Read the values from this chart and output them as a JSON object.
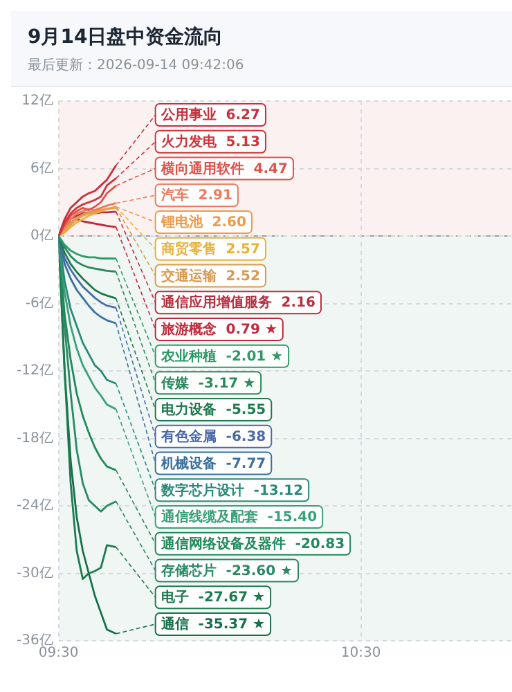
{
  "chart_data": {
    "type": "line",
    "title": "9月14日盘中资金流向",
    "subtitle": "最后更新：2026-09-14 09:42:06",
    "x": [
      9.5,
      9.52,
      9.54,
      9.56,
      9.58,
      9.6,
      9.62,
      9.64,
      9.66,
      9.69
    ],
    "xlim": [
      9.5,
      11
    ],
    "xticks": [
      {
        "value": 9.5,
        "label": "09:30"
      },
      {
        "value": 10.5,
        "label": "10:30"
      }
    ],
    "ylim": [
      -36,
      12
    ],
    "yticks": [
      {
        "value": 12,
        "label": "12亿"
      },
      {
        "value": 6,
        "label": "6亿"
      },
      {
        "value": 0,
        "label": "0亿"
      },
      {
        "value": -6,
        "label": "-6亿"
      },
      {
        "value": -12,
        "label": "-12亿"
      },
      {
        "value": -18,
        "label": "-18亿"
      },
      {
        "value": -24,
        "label": "-24亿"
      },
      {
        "value": -30,
        "label": "-30亿"
      },
      {
        "value": -36,
        "label": "-36亿"
      }
    ],
    "grid": true,
    "legend": false,
    "marker": "none",
    "bands": [
      {
        "axis": "y",
        "from": 0,
        "to": 12,
        "color": "#fbf1f1"
      },
      {
        "axis": "y",
        "from": -36,
        "to": 0,
        "color": "#eff6f3"
      }
    ],
    "ref_lines": [
      {
        "axis": "y",
        "value": 0,
        "color": "#9aa0a8",
        "line_style": "dashed"
      }
    ],
    "series": [
      {
        "name": "公用事业",
        "color": "#c8303c",
        "values": [
          0,
          1.5,
          2.5,
          3,
          3.5,
          3.8,
          4,
          4.5,
          5,
          6.27
        ],
        "value_labels": [
          null,
          null,
          null,
          null,
          null,
          null,
          null,
          null,
          null,
          "6.27"
        ]
      },
      {
        "name": "火力发电",
        "color": "#d0343a",
        "values": [
          0,
          1.2,
          2,
          2.5,
          2.8,
          3,
          3.2,
          3.5,
          4.5,
          5.13
        ],
        "value_labels": [
          null,
          null,
          null,
          null,
          null,
          null,
          null,
          null,
          null,
          "5.13"
        ]
      },
      {
        "name": "横向通用软件",
        "color": "#e0524a",
        "values": [
          0,
          1,
          1.8,
          2.2,
          2.5,
          2.3,
          2.6,
          3,
          3.8,
          4.47
        ],
        "value_labels": [
          null,
          null,
          null,
          null,
          null,
          null,
          null,
          null,
          null,
          "4.47"
        ]
      },
      {
        "name": "汽车",
        "color": "#ee7a5a",
        "values": [
          0,
          0.8,
          1.5,
          2,
          2.2,
          2.4,
          2.3,
          2.5,
          2.7,
          2.91
        ],
        "value_labels": [
          null,
          null,
          null,
          null,
          null,
          null,
          null,
          null,
          null,
          "2.91"
        ]
      },
      {
        "name": "锂电池",
        "color": "#f0994a",
        "values": [
          0,
          0.5,
          1,
          1.5,
          1.8,
          2,
          2.1,
          2.3,
          2.4,
          2.6
        ],
        "value_labels": [
          null,
          null,
          null,
          null,
          null,
          null,
          null,
          null,
          null,
          "2.60"
        ]
      },
      {
        "name": "商贸零售",
        "color": "#e8b23a",
        "values": [
          0,
          0.3,
          0.8,
          1.2,
          1.5,
          1.8,
          2,
          2.2,
          2.4,
          2.57
        ],
        "value_labels": [
          null,
          null,
          null,
          null,
          null,
          null,
          null,
          null,
          null,
          "2.57"
        ]
      },
      {
        "name": "交通运输",
        "color": "#d89a50",
        "values": [
          0,
          0.6,
          1.2,
          1.6,
          1.9,
          2.1,
          2.2,
          2.3,
          2.4,
          2.52
        ],
        "value_labels": [
          null,
          null,
          null,
          null,
          null,
          null,
          null,
          null,
          null,
          "2.52"
        ]
      },
      {
        "name": "通信应用增值服务",
        "color": "#b8303e",
        "values": [
          0,
          0.8,
          1.5,
          1.8,
          2,
          2.1,
          2,
          2.1,
          2.1,
          2.16
        ],
        "value_labels": [
          null,
          null,
          null,
          null,
          null,
          null,
          null,
          null,
          null,
          "2.16"
        ]
      },
      {
        "name": "旅游概念",
        "color": "#c02a3a",
        "values": [
          0,
          0.7,
          1.2,
          1.5,
          1.3,
          1.2,
          1.1,
          1,
          0.9,
          0.79
        ],
        "value_labels": [
          null,
          null,
          null,
          null,
          null,
          null,
          null,
          null,
          null,
          "0.79 ★"
        ]
      },
      {
        "name": "农业种植",
        "color": "#2e9a68",
        "values": [
          0,
          -0.8,
          -1.3,
          -1.6,
          -1.8,
          -1.9,
          -1.9,
          -2,
          -2,
          -2.01
        ],
        "value_labels": [
          null,
          null,
          null,
          null,
          null,
          null,
          null,
          null,
          null,
          "-2.01 ★"
        ]
      },
      {
        "name": "传媒",
        "color": "#2a8a5c",
        "values": [
          0,
          -1,
          -1.8,
          -2.3,
          -2.6,
          -2.8,
          -2.9,
          -3,
          -3.1,
          -3.17
        ],
        "value_labels": [
          null,
          null,
          null,
          null,
          null,
          null,
          null,
          null,
          null,
          "-3.17 ★"
        ]
      },
      {
        "name": "电力设备",
        "color": "#1f7a4e",
        "values": [
          0,
          -1.5,
          -2.5,
          -3.2,
          -3.8,
          -4.3,
          -4.8,
          -5.1,
          -5.3,
          -5.55
        ],
        "value_labels": [
          null,
          null,
          null,
          null,
          null,
          null,
          null,
          null,
          null,
          "-5.55"
        ]
      },
      {
        "name": "有色金属",
        "color": "#4a6aa8",
        "values": [
          0,
          -2,
          -3,
          -3.8,
          -4.5,
          -5,
          -5.5,
          -5.9,
          -6.2,
          -6.38
        ],
        "value_labels": [
          null,
          null,
          null,
          null,
          null,
          null,
          null,
          null,
          null,
          "-6.38"
        ]
      },
      {
        "name": "机械设备",
        "color": "#3a70a0",
        "values": [
          0,
          -2.5,
          -3.8,
          -4.8,
          -5.5,
          -6.2,
          -6.8,
          -7.2,
          -7.5,
          -7.77
        ],
        "value_labels": [
          null,
          null,
          null,
          null,
          null,
          null,
          null,
          null,
          null,
          "-7.77"
        ]
      },
      {
        "name": "数字芯片设计",
        "color": "#2a8a7a",
        "values": [
          0,
          -4,
          -6.5,
          -8,
          -9.5,
          -10.5,
          -11.5,
          -12,
          -12.8,
          -13.12
        ],
        "value_labels": [
          null,
          null,
          null,
          null,
          null,
          null,
          null,
          null,
          null,
          "-13.12"
        ]
      },
      {
        "name": "通信线缆及配套",
        "color": "#3aa078",
        "values": [
          0,
          -5,
          -8,
          -10,
          -11.5,
          -12.5,
          -13.5,
          -14.2,
          -15,
          -15.4
        ],
        "value_labels": [
          null,
          null,
          null,
          null,
          null,
          null,
          null,
          null,
          null,
          "-15.40"
        ]
      },
      {
        "name": "通信网络设备及器件",
        "color": "#1f8a5a",
        "values": [
          0,
          -7,
          -11,
          -14,
          -16,
          -17.5,
          -18.8,
          -19.8,
          -20.5,
          -20.83
        ],
        "value_labels": [
          null,
          null,
          null,
          null,
          null,
          null,
          null,
          null,
          null,
          "-20.83"
        ]
      },
      {
        "name": "存储芯片",
        "color": "#2a8a64",
        "values": [
          0,
          -8,
          -14,
          -19,
          -22,
          -23.5,
          -24,
          -24.5,
          -24,
          -23.6
        ],
        "value_labels": [
          null,
          null,
          null,
          null,
          null,
          null,
          null,
          null,
          null,
          "-23.60 ★"
        ]
      },
      {
        "name": "电子",
        "color": "#1e7a50",
        "values": [
          0,
          -12,
          -22,
          -28,
          -30.5,
          -30,
          -29.8,
          -29.5,
          -27.5,
          -27.67
        ],
        "value_labels": [
          null,
          null,
          null,
          null,
          null,
          null,
          null,
          null,
          null,
          "-27.67 ★"
        ]
      },
      {
        "name": "通信",
        "color": "#16704a",
        "values": [
          0,
          -12,
          -20,
          -25,
          -28,
          -30,
          -32,
          -33.5,
          -35,
          -35.37
        ],
        "value_labels": [
          null,
          null,
          null,
          null,
          null,
          null,
          null,
          null,
          null,
          "-35.37 ★"
        ]
      }
    ]
  }
}
